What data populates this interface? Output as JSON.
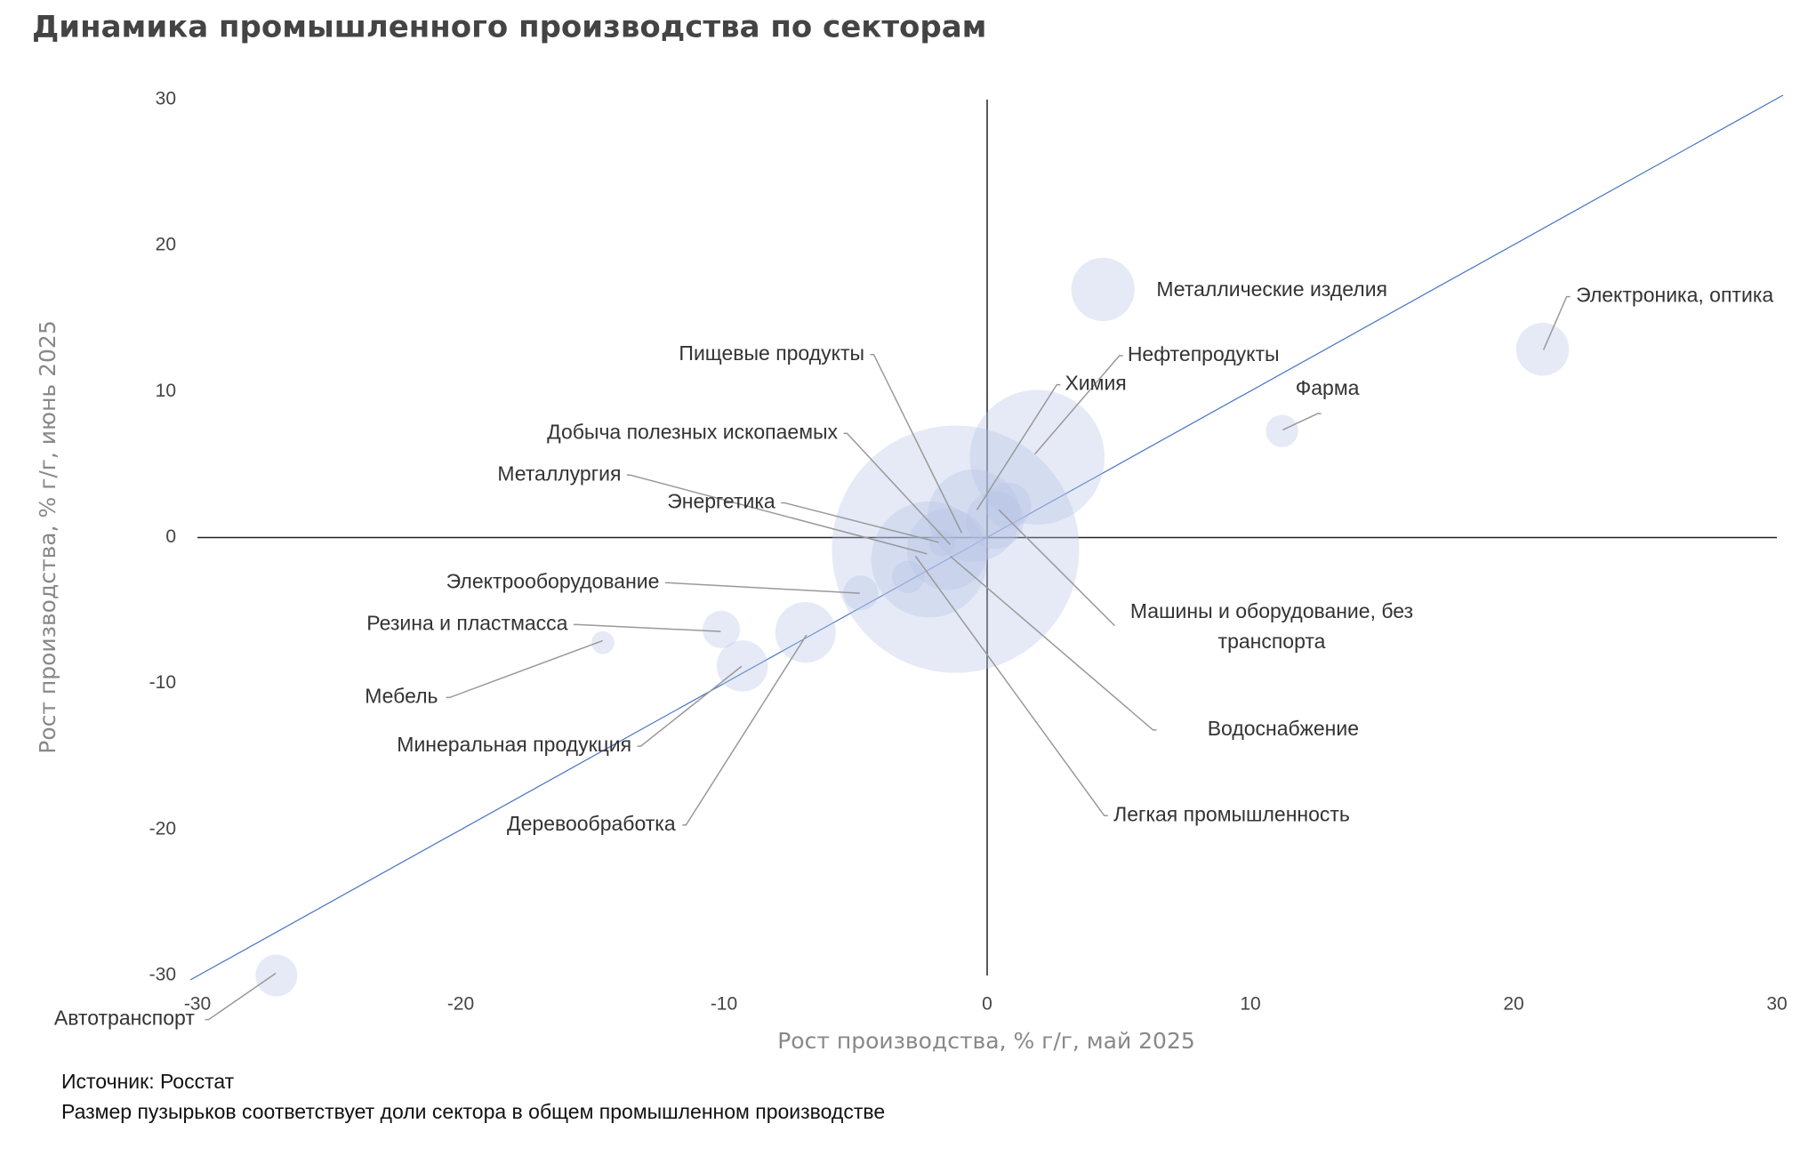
{
  "chart_data": {
    "type": "bubble",
    "title": "Динамика промышленного производства по секторам",
    "x_label": "Рост производства, % г/г, май 2025",
    "y_label": "Рост производства, % г/г, июнь 2025",
    "labels": [
      "Автотранспорт",
      "Мебель",
      "Резина и пластмасса",
      "Минеральная продукция",
      "Деревообработка",
      "Электрооборудование",
      "Металлические изделия",
      "Электроника, оптика",
      "Фарма",
      "Нефтепродукты",
      "Химия",
      "Пищевые продукты",
      "Добыча полезных ископаемых",
      "Металлургия",
      "Энергетика",
      "Машины и оборудование, без транспорта",
      "Водоснабжение",
      "Легкая промышленность"
    ],
    "x": [
      -27,
      -14.6,
      -10.1,
      -9.3,
      -6.9,
      -4.8,
      4.4,
      21.1,
      11.2,
      1.9,
      0.8,
      -0.5,
      -1.2,
      -2.2,
      -1.5,
      0.3,
      -1.7,
      -3
    ],
    "y": [
      -30,
      -7.2,
      -6.3,
      -8.8,
      -6.5,
      -3.8,
      17,
      12.9,
      7.3,
      5.5,
      2.2,
      1.5,
      -0.8,
      -1.5,
      -0.8,
      1.2,
      -0.4,
      -2.7
    ],
    "size": [
      1.0,
      0.3,
      0.8,
      1.5,
      2.1,
      0.7,
      2.3,
      1.6,
      0.6,
      10.4,
      1.2,
      4.9,
      35,
      7.7,
      3.8,
      1.9,
      0.4,
      0.6
    ],
    "color": "#b4c3e6",
    "diagonal_color": "#4472c4",
    "xlim": [
      -30,
      30
    ],
    "ylim": [
      -30,
      30
    ],
    "xticks": [
      -30,
      -20,
      -10,
      0,
      10,
      20,
      30
    ],
    "yticks": [
      -30,
      -20,
      -10,
      0,
      10,
      20,
      30
    ],
    "notes": [
      "Источник: Росстат",
      "Размер пузырьков соответствует доли сектора в общем промышленном производстве"
    ]
  }
}
